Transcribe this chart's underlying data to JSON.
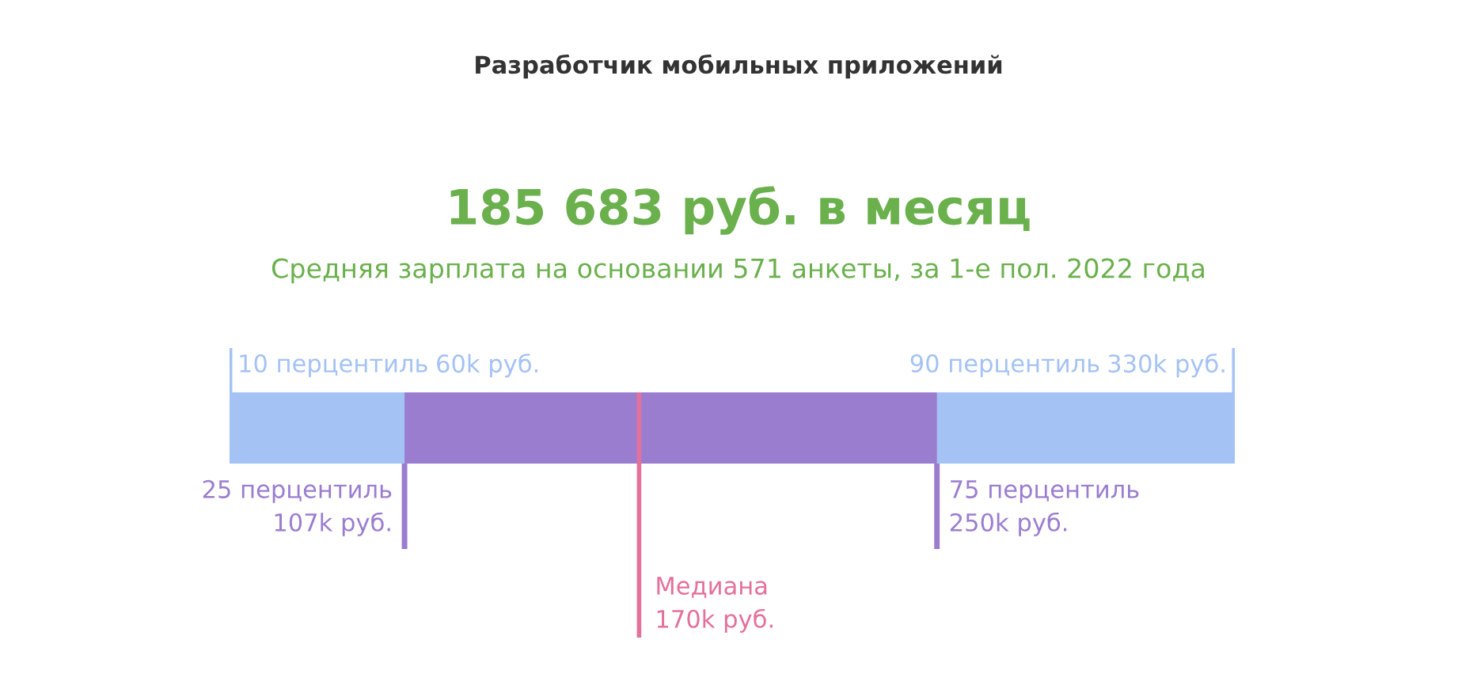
{
  "chart_data": {
    "type": "other",
    "title": "Разработчик мобильных приложений",
    "subtitle": "185 683 руб. в месяц",
    "annotations": [
      "Средняя зарплата на основании 571 анкеты, за 1-е пол. 2022 года"
    ],
    "categories": [
      "10 перцентиль",
      "25 перцентиль",
      "Медиана",
      "75 перцентиль",
      "90 перцентиль"
    ],
    "values": [
      60,
      107,
      170,
      250,
      330
    ],
    "value_labels": [
      "60k руб.",
      "107k руб.",
      "170k руб.",
      "250k руб.",
      "330k руб."
    ],
    "colors": [
      "#a4c2f4",
      "#9b7dd0",
      "#e4709c",
      "#9b7dd0",
      "#a4c2f4"
    ]
  }
}
